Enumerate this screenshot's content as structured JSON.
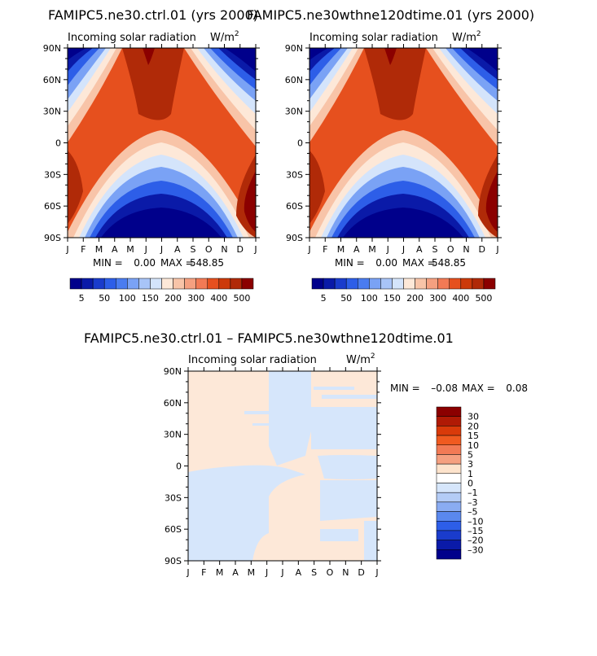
{
  "chart_data": [
    {
      "type": "heatmap",
      "title": "FAMIPC5.ne30.ctrl.01 (yrs 2000)",
      "subtitle": "Incoming solar radiation",
      "units_base": "W/m",
      "units_exp": "2",
      "stats": {
        "min_label": "MIN =",
        "min": "0.00",
        "max_label": "MAX =",
        "max": "548.85"
      },
      "x_ticks": [
        "J",
        "F",
        "M",
        "A",
        "M",
        "J",
        "J",
        "A",
        "S",
        "O",
        "N",
        "D",
        "J"
      ],
      "y_ticks": [
        "90N",
        "60N",
        "30N",
        "0",
        "30S",
        "60S",
        "90S"
      ],
      "colorbar": {
        "orientation": "horizontal",
        "colors": [
          "#00008b",
          "#0a1aa8",
          "#1a3ccc",
          "#2d5ee8",
          "#4a7cf0",
          "#7aa2f5",
          "#a8c4f8",
          "#d4e4fb",
          "#fde8d8",
          "#f8c4a8",
          "#f5a080",
          "#f27a55",
          "#e6501e",
          "#cc3a0a",
          "#b02a08",
          "#8b0000"
        ],
        "labels": [
          "5",
          "50",
          "100",
          "150",
          "200",
          "300",
          "400",
          "500"
        ]
      }
    },
    {
      "type": "heatmap",
      "title": "FAMIPC5.ne30wthne120dtime.01 (yrs 2000)",
      "subtitle": "Incoming solar radiation",
      "units_base": "W/m",
      "units_exp": "2",
      "stats": {
        "min_label": "MIN =",
        "min": "0.00",
        "max_label": "MAX =",
        "max": "548.85"
      },
      "x_ticks": [
        "J",
        "F",
        "M",
        "A",
        "M",
        "J",
        "J",
        "A",
        "S",
        "O",
        "N",
        "D",
        "J"
      ],
      "y_ticks": [
        "90N",
        "60N",
        "30N",
        "0",
        "30S",
        "60S",
        "90S"
      ],
      "colorbar": {
        "orientation": "horizontal",
        "colors": [
          "#00008b",
          "#0a1aa8",
          "#1a3ccc",
          "#2d5ee8",
          "#4a7cf0",
          "#7aa2f5",
          "#a8c4f8",
          "#d4e4fb",
          "#fde8d8",
          "#f8c4a8",
          "#f5a080",
          "#f27a55",
          "#e6501e",
          "#cc3a0a",
          "#b02a08",
          "#8b0000"
        ],
        "labels": [
          "5",
          "50",
          "100",
          "150",
          "200",
          "300",
          "400",
          "500"
        ]
      }
    },
    {
      "type": "heatmap",
      "title": "FAMIPC5.ne30.ctrl.01 – FAMIPC5.ne30wthne120dtime.01",
      "subtitle": "Incoming solar radiation",
      "units_base": "W/m",
      "units_exp": "2",
      "stats": {
        "min_label": "MIN =",
        "min": "–0.08",
        "max_label": "MAX =",
        "max": "0.08"
      },
      "x_ticks": [
        "J",
        "F",
        "M",
        "A",
        "M",
        "J",
        "J",
        "A",
        "S",
        "O",
        "N",
        "D",
        "J"
      ],
      "y_ticks": [
        "90N",
        "60N",
        "30N",
        "0",
        "30S",
        "60S",
        "90S"
      ],
      "colorbar": {
        "orientation": "vertical",
        "colors": [
          "#8b0000",
          "#b01a05",
          "#d93a0a",
          "#f05a20",
          "#f27a55",
          "#f5a080",
          "#fde3cc",
          "#ffffff",
          "#d6e6fb",
          "#b4ccf6",
          "#8aacf2",
          "#5a88ee",
          "#2d5ee8",
          "#1a3ccc",
          "#0a1aa8",
          "#00008b"
        ],
        "labels": [
          "30",
          "20",
          "15",
          "10",
          "5",
          "3",
          "1",
          "0",
          "–1",
          "–3",
          "–5",
          "–10",
          "–15",
          "–20",
          "–30"
        ]
      }
    }
  ]
}
